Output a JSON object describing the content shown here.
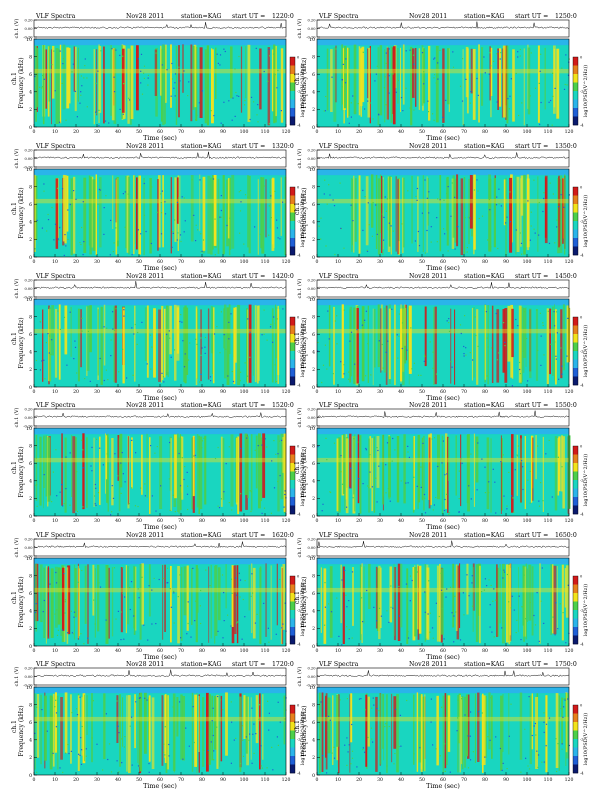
{
  "labels": {
    "header_prefix": "VLF Spectra",
    "date": "Nov28 2011",
    "station": "station=KAG",
    "start_label": "start  UT =",
    "waveform_axis_label": "ch.1 (V)",
    "waveform_ticks": [
      "0.20",
      "0.00",
      "-0.20"
    ],
    "channel_label": "ch.1",
    "freq_axis_label": "Frequency (kHz)",
    "time_axis_label": "Time (sec)",
    "colorbar_label": "log10(PSD(V^2/Hz))",
    "colorbar_ticks": [
      "0",
      "-2",
      "-4"
    ]
  },
  "colors": {
    "background_level": "#19d6c0",
    "mid_level": "#4ccf4a",
    "high_level": "#f2e31c",
    "peak_level": "#d11a1a",
    "low_level": "#1f5fd6",
    "upper_band": "#2ab4ea"
  },
  "chart_data": [
    {
      "type": "heatmap",
      "start_ut": "1220:0",
      "x_label": "Time (sec)",
      "y_label": "Frequency (kHz)",
      "xlim": [
        0,
        120
      ],
      "ylim": [
        0,
        10
      ],
      "x_ticks": [
        0,
        10,
        20,
        30,
        40,
        50,
        60,
        70,
        80,
        90,
        100,
        110,
        120
      ],
      "y_ticks": [
        0,
        2,
        4,
        6,
        8,
        10
      ],
      "colorbar": {
        "label": "log10(PSD(V^2/Hz))",
        "ticks": [
          0,
          -2,
          -4
        ]
      },
      "waveform": {
        "ylim": [
          -0.2,
          0.2
        ],
        "ticks": [
          0.2,
          0,
          -0.2
        ]
      }
    },
    {
      "type": "heatmap",
      "start_ut": "1250:0",
      "x_label": "Time (sec)",
      "y_label": "Frequency (kHz)",
      "xlim": [
        0,
        120
      ],
      "ylim": [
        0,
        10
      ],
      "x_ticks": [
        0,
        10,
        20,
        30,
        40,
        50,
        60,
        70,
        80,
        90,
        100,
        110,
        120
      ],
      "y_ticks": [
        0,
        2,
        4,
        6,
        8,
        10
      ],
      "colorbar": {
        "label": "log10(PSD(V^2/Hz))",
        "ticks": [
          0,
          -2,
          -4
        ]
      },
      "waveform": {
        "ylim": [
          -0.2,
          0.2
        ],
        "ticks": [
          0.2,
          0,
          -0.2
        ]
      }
    },
    {
      "type": "heatmap",
      "start_ut": "1320:0",
      "x_label": "Time (sec)",
      "y_label": "Frequency (kHz)",
      "xlim": [
        0,
        120
      ],
      "ylim": [
        0,
        10
      ],
      "x_ticks": [
        0,
        10,
        20,
        30,
        40,
        50,
        60,
        70,
        80,
        90,
        100,
        110,
        120
      ],
      "y_ticks": [
        0,
        2,
        4,
        6,
        8,
        10
      ],
      "colorbar": {
        "label": "log10(PSD(V^2/Hz))",
        "ticks": [
          0,
          -2,
          -4
        ]
      },
      "waveform": {
        "ylim": [
          -0.2,
          0.2
        ],
        "ticks": [
          0.2,
          0,
          -0.2
        ]
      }
    },
    {
      "type": "heatmap",
      "start_ut": "1350:0",
      "x_label": "Time (sec)",
      "y_label": "Frequency (kHz)",
      "xlim": [
        0,
        120
      ],
      "ylim": [
        0,
        10
      ],
      "x_ticks": [
        0,
        10,
        20,
        30,
        40,
        50,
        60,
        70,
        80,
        90,
        100,
        110,
        120
      ],
      "y_ticks": [
        0,
        2,
        4,
        6,
        8,
        10
      ],
      "colorbar": {
        "label": "log10(PSD(V^2/Hz))",
        "ticks": [
          0,
          -2,
          -4
        ]
      },
      "waveform": {
        "ylim": [
          -0.2,
          0.2
        ],
        "ticks": [
          0.2,
          0,
          -0.2
        ]
      }
    },
    {
      "type": "heatmap",
      "start_ut": "1420:0",
      "x_label": "Time (sec)",
      "y_label": "Frequency (kHz)",
      "xlim": [
        0,
        120
      ],
      "ylim": [
        0,
        10
      ],
      "x_ticks": [
        0,
        10,
        20,
        30,
        40,
        50,
        60,
        70,
        80,
        90,
        100,
        110,
        120
      ],
      "y_ticks": [
        0,
        2,
        4,
        6,
        8,
        10
      ],
      "colorbar": {
        "label": "log10(PSD(V^2/Hz))",
        "ticks": [
          0,
          -2,
          -4
        ]
      },
      "waveform": {
        "ylim": [
          -0.2,
          0.2
        ],
        "ticks": [
          0.2,
          0,
          -0.2
        ]
      }
    },
    {
      "type": "heatmap",
      "start_ut": "1450:0",
      "x_label": "Time (sec)",
      "y_label": "Frequency (kHz)",
      "xlim": [
        0,
        120
      ],
      "ylim": [
        0,
        10
      ],
      "x_ticks": [
        0,
        10,
        20,
        30,
        40,
        50,
        60,
        70,
        80,
        90,
        100,
        110,
        120
      ],
      "y_ticks": [
        0,
        2,
        4,
        6,
        8,
        10
      ],
      "colorbar": {
        "label": "log10(PSD(V^2/Hz))",
        "ticks": [
          0,
          -2,
          -4
        ]
      },
      "waveform": {
        "ylim": [
          -0.2,
          0.2
        ],
        "ticks": [
          0.2,
          0,
          -0.2
        ]
      }
    },
    {
      "type": "heatmap",
      "start_ut": "1520:0",
      "x_label": "Time (sec)",
      "y_label": "Frequency (kHz)",
      "xlim": [
        0,
        120
      ],
      "ylim": [
        0,
        10
      ],
      "x_ticks": [
        0,
        10,
        20,
        30,
        40,
        50,
        60,
        70,
        80,
        90,
        100,
        110,
        120
      ],
      "y_ticks": [
        0,
        2,
        4,
        6,
        8,
        10
      ],
      "colorbar": {
        "label": "log10(PSD(V^2/Hz))",
        "ticks": [
          0,
          -2,
          -4
        ]
      },
      "waveform": {
        "ylim": [
          -0.2,
          0.2
        ],
        "ticks": [
          0.2,
          0,
          -0.2
        ]
      }
    },
    {
      "type": "heatmap",
      "start_ut": "1550:0",
      "x_label": "Time (sec)",
      "y_label": "Frequency (kHz)",
      "xlim": [
        0,
        120
      ],
      "ylim": [
        0,
        10
      ],
      "x_ticks": [
        0,
        10,
        20,
        30,
        40,
        50,
        60,
        70,
        80,
        90,
        100,
        110,
        120
      ],
      "y_ticks": [
        0,
        2,
        4,
        6,
        8,
        10
      ],
      "colorbar": {
        "label": "log10(PSD(V^2/Hz))",
        "ticks": [
          0,
          -2,
          -4
        ]
      },
      "waveform": {
        "ylim": [
          -0.2,
          0.2
        ],
        "ticks": [
          0.2,
          0,
          -0.2
        ]
      }
    },
    {
      "type": "heatmap",
      "start_ut": "1620:0",
      "x_label": "Time (sec)",
      "y_label": "Frequency (kHz)",
      "xlim": [
        0,
        120
      ],
      "ylim": [
        0,
        10
      ],
      "x_ticks": [
        0,
        10,
        20,
        30,
        40,
        50,
        60,
        70,
        80,
        90,
        100,
        110,
        120
      ],
      "y_ticks": [
        0,
        2,
        4,
        6,
        8,
        10
      ],
      "colorbar": {
        "label": "log10(PSD(V^2/Hz))",
        "ticks": [
          0,
          -2,
          -4
        ]
      },
      "waveform": {
        "ylim": [
          -0.2,
          0.2
        ],
        "ticks": [
          0.2,
          0,
          -0.2
        ]
      }
    },
    {
      "type": "heatmap",
      "start_ut": "1650:0",
      "x_label": "Time (sec)",
      "y_label": "Frequency (kHz)",
      "xlim": [
        0,
        120
      ],
      "ylim": [
        0,
        10
      ],
      "x_ticks": [
        0,
        10,
        20,
        30,
        40,
        50,
        60,
        70,
        80,
        90,
        100,
        110,
        120
      ],
      "y_ticks": [
        0,
        2,
        4,
        6,
        8,
        10
      ],
      "colorbar": {
        "label": "log10(PSD(V^2/Hz))",
        "ticks": [
          0,
          -2,
          -4
        ]
      },
      "waveform": {
        "ylim": [
          -0.2,
          0.2
        ],
        "ticks": [
          0.2,
          0,
          -0.2
        ]
      }
    },
    {
      "type": "heatmap",
      "start_ut": "1720:0",
      "x_label": "Time (sec)",
      "y_label": "Frequency (kHz)",
      "xlim": [
        0,
        120
      ],
      "ylim": [
        0,
        10
      ],
      "x_ticks": [
        0,
        10,
        20,
        30,
        40,
        50,
        60,
        70,
        80,
        90,
        100,
        110,
        120
      ],
      "y_ticks": [
        0,
        2,
        4,
        6,
        8,
        10
      ],
      "colorbar": {
        "label": "log10(PSD(V^2/Hz))",
        "ticks": [
          0,
          -2,
          -4
        ]
      },
      "waveform": {
        "ylim": [
          -0.2,
          0.2
        ],
        "ticks": [
          0.2,
          0,
          -0.2
        ]
      }
    },
    {
      "type": "heatmap",
      "start_ut": "1750:0",
      "x_label": "Time (sec)",
      "y_label": "Frequency (kHz)",
      "xlim": [
        0,
        120
      ],
      "ylim": [
        0,
        10
      ],
      "x_ticks": [
        0,
        10,
        20,
        30,
        40,
        50,
        60,
        70,
        80,
        90,
        100,
        110,
        120
      ],
      "y_ticks": [
        0,
        2,
        4,
        6,
        8,
        10
      ],
      "colorbar": {
        "label": "log10(PSD(V^2/Hz))",
        "ticks": [
          0,
          -2,
          -4
        ]
      },
      "waveform": {
        "ylim": [
          -0.2,
          0.2
        ],
        "ticks": [
          0.2,
          0,
          -0.2
        ]
      }
    }
  ]
}
